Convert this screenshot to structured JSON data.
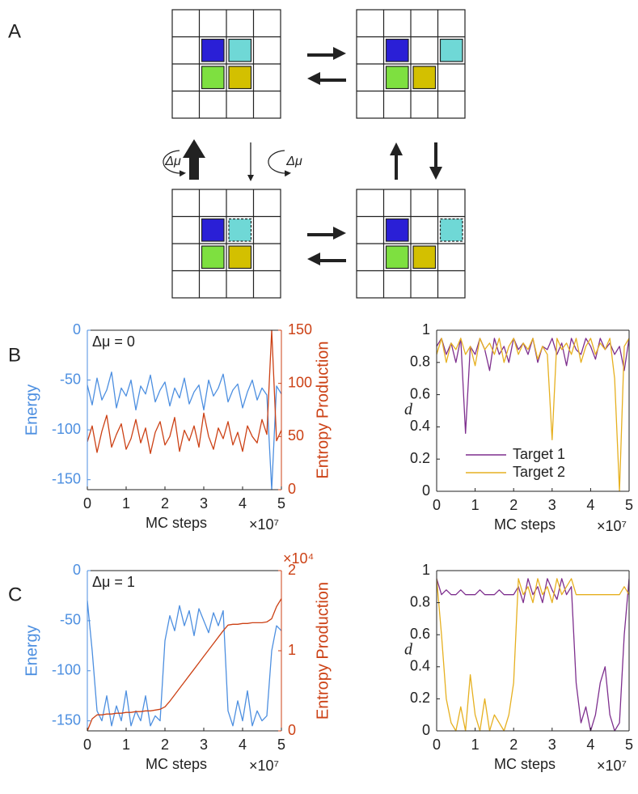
{
  "panel_labels": [
    "A",
    "B",
    "C"
  ],
  "diagram": {
    "cycle_labels": [
      "Δμ",
      "Δμ"
    ]
  },
  "chart_data": [
    {
      "type": "line",
      "annotation": "Δμ = 0",
      "xlabel": "MC steps",
      "x_exponent": "×10⁷",
      "ylabel": "Energy",
      "y2label": "Entropy Production",
      "x": [
        0,
        0.125,
        0.25,
        0.375,
        0.5,
        0.625,
        0.75,
        0.875,
        1,
        1.125,
        1.25,
        1.375,
        1.5,
        1.625,
        1.75,
        1.875,
        2,
        2.125,
        2.25,
        2.375,
        2.5,
        2.625,
        2.75,
        2.875,
        3,
        3.125,
        3.25,
        3.375,
        3.5,
        3.625,
        3.75,
        3.875,
        4,
        4.125,
        4.25,
        4.375,
        4.5,
        4.625,
        4.75,
        4.875,
        5
      ],
      "xlim": [
        0,
        5
      ],
      "xticks": [
        0,
        1,
        2,
        3,
        4,
        5
      ],
      "ylim": [
        -160,
        0
      ],
      "yticks": [
        -150,
        -100,
        -50,
        0
      ],
      "y2lim": [
        0,
        150
      ],
      "y2ticks": [
        0,
        50,
        100,
        150
      ],
      "series": [
        {
          "color": "#4d8fe0",
          "axis": "y",
          "values": [
            -55,
            -75,
            -48,
            -70,
            -60,
            -42,
            -78,
            -58,
            -66,
            -50,
            -80,
            -56,
            -64,
            -45,
            -72,
            -60,
            -52,
            -76,
            -58,
            -68,
            -48,
            -74,
            -62,
            -55,
            -80,
            -50,
            -66,
            -58,
            -44,
            -72,
            -60,
            -54,
            -78,
            -62,
            -50,
            -70,
            -58,
            -65,
            -160,
            -56,
            -64
          ]
        },
        {
          "color": "#cc4115",
          "axis": "y2",
          "values": [
            45,
            60,
            35,
            55,
            70,
            40,
            52,
            62,
            38,
            48,
            66,
            44,
            58,
            34,
            54,
            64,
            42,
            50,
            68,
            36,
            56,
            46,
            60,
            40,
            72,
            50,
            38,
            58,
            48,
            64,
            42,
            54,
            36,
            60,
            50,
            44,
            66,
            52,
            150,
            46,
            56
          ]
        }
      ]
    },
    {
      "type": "line",
      "xlabel": "MC steps",
      "x_exponent": "×10⁷",
      "ylabel": "d",
      "x": [
        0,
        0.125,
        0.25,
        0.375,
        0.5,
        0.625,
        0.75,
        0.875,
        1,
        1.125,
        1.25,
        1.375,
        1.5,
        1.625,
        1.75,
        1.875,
        2,
        2.125,
        2.25,
        2.375,
        2.5,
        2.625,
        2.75,
        2.875,
        3,
        3.125,
        3.25,
        3.375,
        3.5,
        3.625,
        3.75,
        3.875,
        4,
        4.125,
        4.25,
        4.375,
        4.5,
        4.625,
        4.75,
        4.875,
        5
      ],
      "xlim": [
        0,
        5
      ],
      "xticks": [
        0,
        1,
        2,
        3,
        4,
        5
      ],
      "ylim": [
        0,
        1
      ],
      "yticks": [
        0,
        0.2,
        0.4,
        0.6,
        0.8,
        1
      ],
      "legend": "lower right",
      "series": [
        {
          "name": "Target 1",
          "color": "#7e2f8e",
          "values": [
            0.9,
            0.95,
            0.85,
            0.92,
            0.8,
            0.95,
            0.36,
            0.9,
            0.85,
            0.95,
            0.88,
            0.75,
            0.95,
            0.85,
            0.9,
            0.8,
            0.95,
            0.88,
            0.92,
            0.85,
            0.95,
            0.8,
            0.9,
            0.88,
            0.95,
            0.85,
            0.92,
            0.78,
            0.95,
            0.88,
            0.85,
            0.95,
            0.9,
            0.82,
            0.95,
            0.88,
            0.92,
            0.85,
            0.9,
            0.75,
            0.95
          ]
        },
        {
          "name": "Target 2",
          "color": "#e6b020",
          "values": [
            0.85,
            0.95,
            0.8,
            0.92,
            0.88,
            0.95,
            0.85,
            0.9,
            0.78,
            0.95,
            0.88,
            0.92,
            0.85,
            0.95,
            0.8,
            0.9,
            0.95,
            0.85,
            0.92,
            0.88,
            0.95,
            0.82,
            0.9,
            0.85,
            0.32,
            0.95,
            0.88,
            0.92,
            0.85,
            0.95,
            0.8,
            0.9,
            0.95,
            0.85,
            0.92,
            0.88,
            0.95,
            0.7,
            0,
            0.9,
            0.95
          ]
        }
      ]
    },
    {
      "type": "line",
      "annotation": "Δμ = 1",
      "xlabel": "MC steps",
      "x_exponent": "×10⁷",
      "ylabel": "Energy",
      "y2label": "Entropy Production",
      "y2_exponent": "×10⁴",
      "x": [
        0,
        0.125,
        0.25,
        0.375,
        0.5,
        0.625,
        0.75,
        0.875,
        1,
        1.125,
        1.25,
        1.375,
        1.5,
        1.625,
        1.75,
        1.875,
        2,
        2.125,
        2.25,
        2.375,
        2.5,
        2.625,
        2.75,
        2.875,
        3,
        3.125,
        3.25,
        3.375,
        3.5,
        3.625,
        3.75,
        3.875,
        4,
        4.125,
        4.25,
        4.375,
        4.5,
        4.625,
        4.75,
        4.875,
        5
      ],
      "xlim": [
        0,
        5
      ],
      "xticks": [
        0,
        1,
        2,
        3,
        4,
        5
      ],
      "ylim": [
        -160,
        0
      ],
      "yticks": [
        -150,
        -100,
        -50,
        0
      ],
      "y2lim": [
        0,
        2
      ],
      "y2ticks": [
        0,
        1,
        2
      ],
      "series": [
        {
          "color": "#4d8fe0",
          "axis": "y",
          "values": [
            -30,
            -80,
            -140,
            -150,
            -125,
            -155,
            -135,
            -150,
            -120,
            -155,
            -140,
            -150,
            -125,
            -155,
            -145,
            -150,
            -70,
            -45,
            -60,
            -35,
            -55,
            -40,
            -65,
            -38,
            -50,
            -62,
            -42,
            -55,
            -40,
            -140,
            -155,
            -130,
            -150,
            -120,
            -155,
            -140,
            -150,
            -145,
            -80,
            -55,
            -60
          ]
        },
        {
          "color": "#cc4115",
          "axis": "y2",
          "values": [
            0,
            0.15,
            0.2,
            0.2,
            0.21,
            0.21,
            0.22,
            0.22,
            0.23,
            0.23,
            0.24,
            0.24,
            0.25,
            0.25,
            0.26,
            0.27,
            0.3,
            0.37,
            0.45,
            0.53,
            0.61,
            0.69,
            0.77,
            0.85,
            0.93,
            1.01,
            1.09,
            1.17,
            1.25,
            1.32,
            1.33,
            1.33,
            1.34,
            1.34,
            1.35,
            1.35,
            1.35,
            1.36,
            1.4,
            1.55,
            1.65
          ]
        }
      ]
    },
    {
      "type": "line",
      "xlabel": "MC steps",
      "x_exponent": "×10⁷",
      "ylabel": "d",
      "x": [
        0,
        0.125,
        0.25,
        0.375,
        0.5,
        0.625,
        0.75,
        0.875,
        1,
        1.125,
        1.25,
        1.375,
        1.5,
        1.625,
        1.75,
        1.875,
        2,
        2.125,
        2.25,
        2.375,
        2.5,
        2.625,
        2.75,
        2.875,
        3,
        3.125,
        3.25,
        3.375,
        3.5,
        3.625,
        3.75,
        3.875,
        4,
        4.125,
        4.25,
        4.375,
        4.5,
        4.625,
        4.75,
        4.875,
        5
      ],
      "xlim": [
        0,
        5
      ],
      "xticks": [
        0,
        1,
        2,
        3,
        4,
        5
      ],
      "ylim": [
        0,
        1
      ],
      "yticks": [
        0,
        0.2,
        0.4,
        0.6,
        0.8,
        1
      ],
      "series": [
        {
          "color": "#7e2f8e",
          "values": [
            0.95,
            0.85,
            0.88,
            0.85,
            0.85,
            0.88,
            0.85,
            0.85,
            0.85,
            0.88,
            0.85,
            0.85,
            0.85,
            0.88,
            0.85,
            0.85,
            0.85,
            0.9,
            0.8,
            0.95,
            0.85,
            0.9,
            0.8,
            0.95,
            0.88,
            0.82,
            0.95,
            0.85,
            0.9,
            0.3,
            0.05,
            0.15,
            0,
            0.1,
            0.3,
            0.4,
            0.1,
            0,
            0.05,
            0.6,
            0.95
          ]
        },
        {
          "color": "#e6b020",
          "values": [
            0.95,
            0.6,
            0.2,
            0.05,
            0,
            0.15,
            0,
            0.35,
            0.1,
            0,
            0.2,
            0,
            0.1,
            0.05,
            0,
            0.1,
            0.3,
            0.95,
            0.85,
            0.9,
            0.8,
            0.95,
            0.85,
            0.9,
            0.8,
            0.95,
            0.85,
            0.9,
            0.95,
            0.85,
            0.85,
            0.85,
            0.85,
            0.85,
            0.85,
            0.85,
            0.85,
            0.85,
            0.85,
            0.9,
            0.85
          ]
        }
      ]
    }
  ]
}
